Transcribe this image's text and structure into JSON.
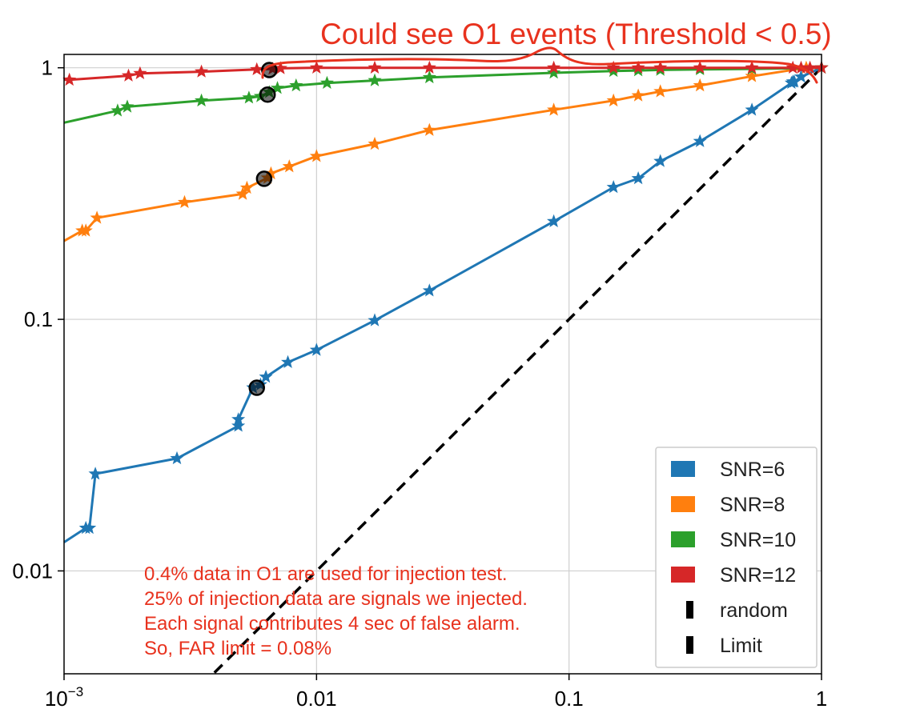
{
  "chart_data": {
    "type": "line",
    "title": "",
    "xlabel": "",
    "ylabel": "",
    "xscale": "log",
    "yscale": "log",
    "xlim": [
      0.001,
      1.0
    ],
    "ylim": [
      0.0039,
      1.13
    ],
    "grid": true,
    "legend_placement": "bottom-right",
    "x_ticks": [
      {
        "value": 0.001,
        "base": "10",
        "exp": "−3"
      },
      {
        "value": 0.01,
        "label": "0.01"
      },
      {
        "value": 0.1,
        "label": "0.1"
      },
      {
        "value": 1,
        "label": "1"
      }
    ],
    "y_ticks": [
      {
        "value": 0.01,
        "label": "0.01"
      },
      {
        "value": 0.1,
        "label": "0.1"
      },
      {
        "value": 1,
        "label": "1"
      }
    ],
    "series": [
      {
        "name": "SNR=6",
        "color": "#1f77b4",
        "start": [
          0.001,
          0.013
        ],
        "x": [
          0.00122,
          0.00126,
          0.00133,
          0.0028,
          0.0049,
          0.0049,
          0.0056,
          0.006,
          0.0063,
          0.0077,
          0.01,
          0.017,
          0.028,
          0.087,
          0.15,
          0.188,
          0.23,
          0.33,
          0.53,
          0.76,
          0.77,
          0.78,
          0.83,
          1.0
        ],
        "y": [
          0.0148,
          0.0148,
          0.0243,
          0.028,
          0.0377,
          0.04,
          0.0535,
          0.055,
          0.059,
          0.0675,
          0.0755,
          0.099,
          0.13,
          0.245,
          0.335,
          0.363,
          0.425,
          0.51,
          0.68,
          0.87,
          0.88,
          0.88,
          0.92,
          1.0
        ]
      },
      {
        "name": "SNR=8",
        "color": "#ff7f0e",
        "start": [
          0.001,
          0.205
        ],
        "x": [
          0.00118,
          0.00122,
          0.00135,
          0.003,
          0.0051,
          0.0053,
          0.0064,
          0.0066,
          0.0078,
          0.01,
          0.017,
          0.028,
          0.087,
          0.15,
          0.188,
          0.23,
          0.33,
          0.53,
          0.87,
          1.0
        ],
        "y": [
          0.225,
          0.225,
          0.253,
          0.292,
          0.315,
          0.333,
          0.365,
          0.38,
          0.405,
          0.445,
          0.498,
          0.565,
          0.68,
          0.74,
          0.775,
          0.805,
          0.85,
          0.925,
          1.0,
          1.0
        ]
      },
      {
        "name": "SNR=10",
        "color": "#2ca02c",
        "start": [
          0.001,
          0.605
        ],
        "x": [
          0.00163,
          0.00178,
          0.0035,
          0.0054,
          0.006,
          0.0065,
          0.007,
          0.0083,
          0.011,
          0.017,
          0.028,
          0.087,
          0.15,
          0.188,
          0.23,
          0.33,
          0.53,
          1.0
        ],
        "y": [
          0.675,
          0.7,
          0.74,
          0.76,
          0.77,
          0.8,
          0.83,
          0.85,
          0.87,
          0.89,
          0.915,
          0.955,
          0.97,
          0.975,
          0.98,
          0.985,
          0.99,
          1.0
        ]
      },
      {
        "name": "SNR=12",
        "color": "#d62728",
        "start": [
          0.001,
          0.895
        ],
        "x": [
          0.00105,
          0.0018,
          0.002,
          0.0035,
          0.0058,
          0.0067,
          0.0072,
          0.01,
          0.017,
          0.028,
          0.087,
          0.15,
          0.188,
          0.23,
          0.33,
          0.53,
          0.77,
          0.83,
          0.9,
          1.0
        ],
        "y": [
          0.895,
          0.93,
          0.95,
          0.965,
          0.985,
          0.99,
          0.995,
          1.0,
          1.0,
          1.0,
          1.0,
          1.0,
          1.0,
          1.0,
          1.0,
          1.0,
          1.0,
          1.0,
          1.0,
          1.0
        ]
      }
    ],
    "reference_lines": [
      {
        "name": "random",
        "color": "#000000",
        "style": "dashed",
        "x": [
          0.00394,
          1.0
        ],
        "y": [
          0.00394,
          1.0
        ]
      }
    ],
    "limit_markers": [
      {
        "series": "SNR=6",
        "x": 0.0058,
        "y": 0.0535
      },
      {
        "series": "SNR=8",
        "x": 0.0062,
        "y": 0.362
      },
      {
        "series": "SNR=10",
        "x": 0.0064,
        "y": 0.782
      },
      {
        "series": "SNR=12",
        "x": 0.0065,
        "y": 0.98
      }
    ],
    "legend": [
      {
        "label": "SNR=6",
        "color": "#1f77b4",
        "kind": "patch"
      },
      {
        "label": "SNR=8",
        "color": "#ff7f0e",
        "kind": "patch"
      },
      {
        "label": "SNR=10",
        "color": "#2ca02c",
        "kind": "patch"
      },
      {
        "label": "SNR=12",
        "color": "#d62728",
        "kind": "patch"
      },
      {
        "label": "random",
        "color": "#000000",
        "kind": "bar"
      },
      {
        "label": "Limit",
        "color": "#000000",
        "kind": "bar"
      }
    ],
    "annotations": {
      "top": "Could see O1 events (Threshold < 0.5)",
      "note_lines": [
        "0.4% data in O1 are used for injection test.",
        "25% of injection data are signals we injected.",
        "Each signal contributes 4 sec of false alarm.",
        "So, FAR limit = 0.08%"
      ],
      "color": "#e8321e"
    }
  }
}
